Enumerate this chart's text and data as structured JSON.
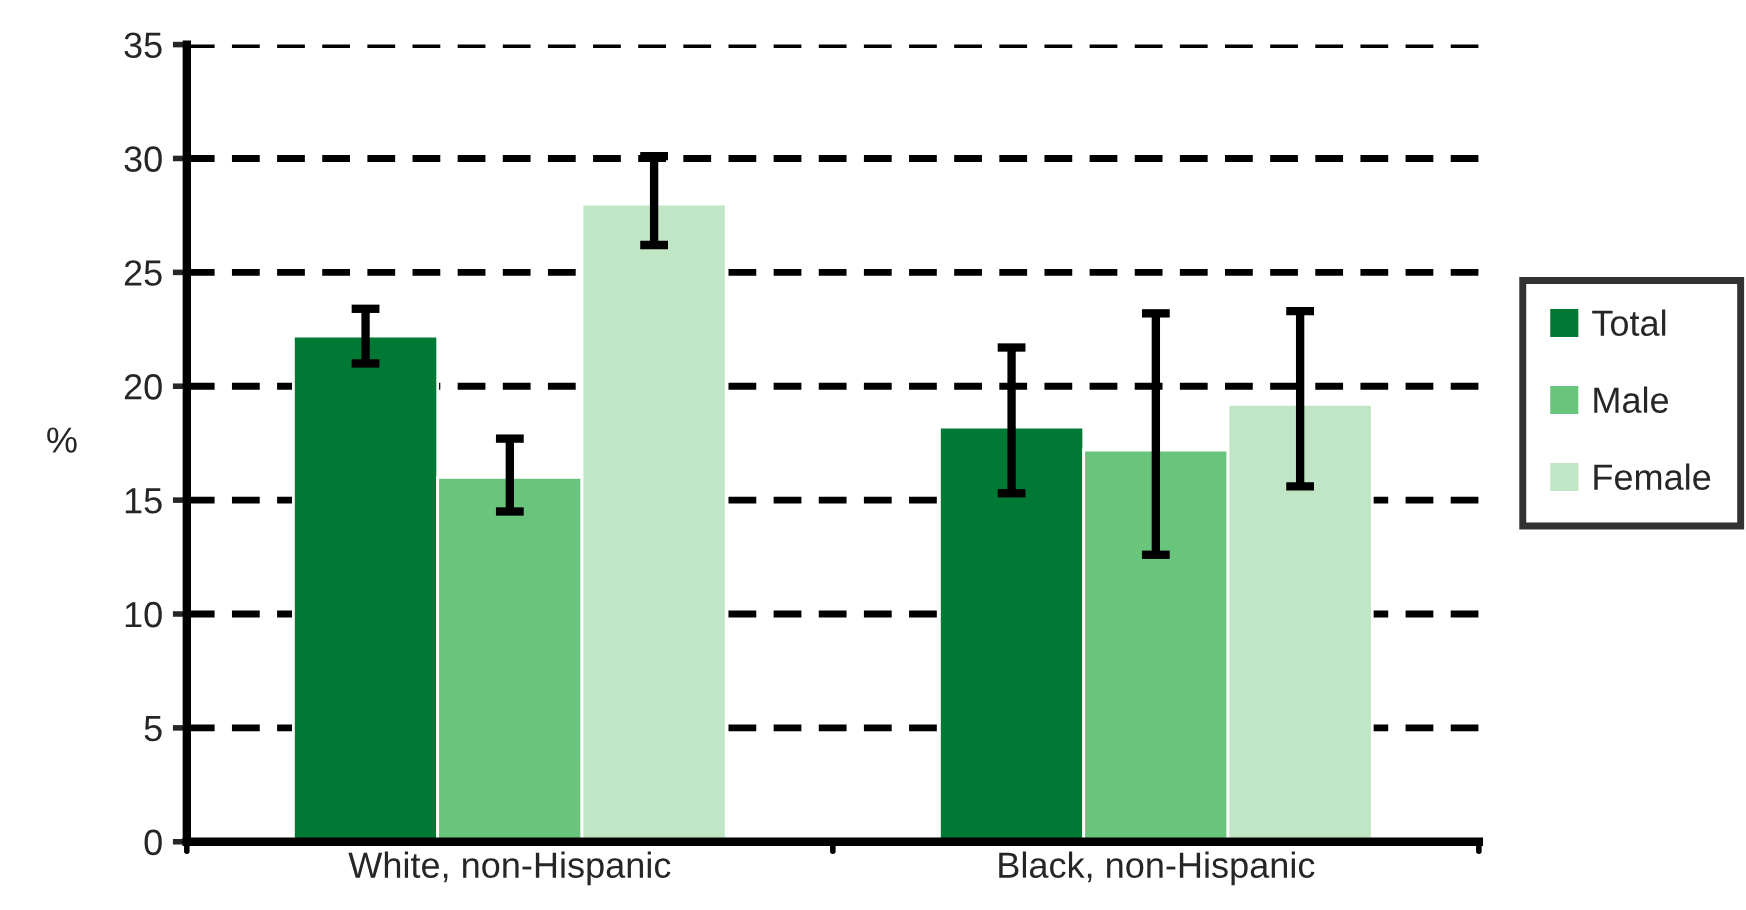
{
  "chart_data": {
    "type": "bar",
    "ylabel": "%",
    "categories": [
      "White, non-Hispanic",
      "Black, non-Hispanic"
    ],
    "series": [
      {
        "name": "Total",
        "color": "#007934",
        "values": [
          22.2,
          18.2
        ],
        "errors": [
          [
            21.0,
            23.4
          ],
          [
            15.3,
            21.7
          ]
        ]
      },
      {
        "name": "Male",
        "color": "#69c57b",
        "values": [
          16.0,
          17.2
        ],
        "errors": [
          [
            14.5,
            17.7
          ],
          [
            12.6,
            23.2
          ]
        ]
      },
      {
        "name": "Female",
        "color": "#c0e6c5",
        "values": [
          28.0,
          19.2
        ],
        "errors": [
          [
            26.2,
            30.1
          ],
          [
            15.6,
            23.3
          ]
        ]
      }
    ],
    "ylim": [
      0,
      35
    ],
    "yticks": [
      0,
      5,
      10,
      15,
      20,
      25,
      30,
      35
    ],
    "grid": "y",
    "legend": "right"
  }
}
